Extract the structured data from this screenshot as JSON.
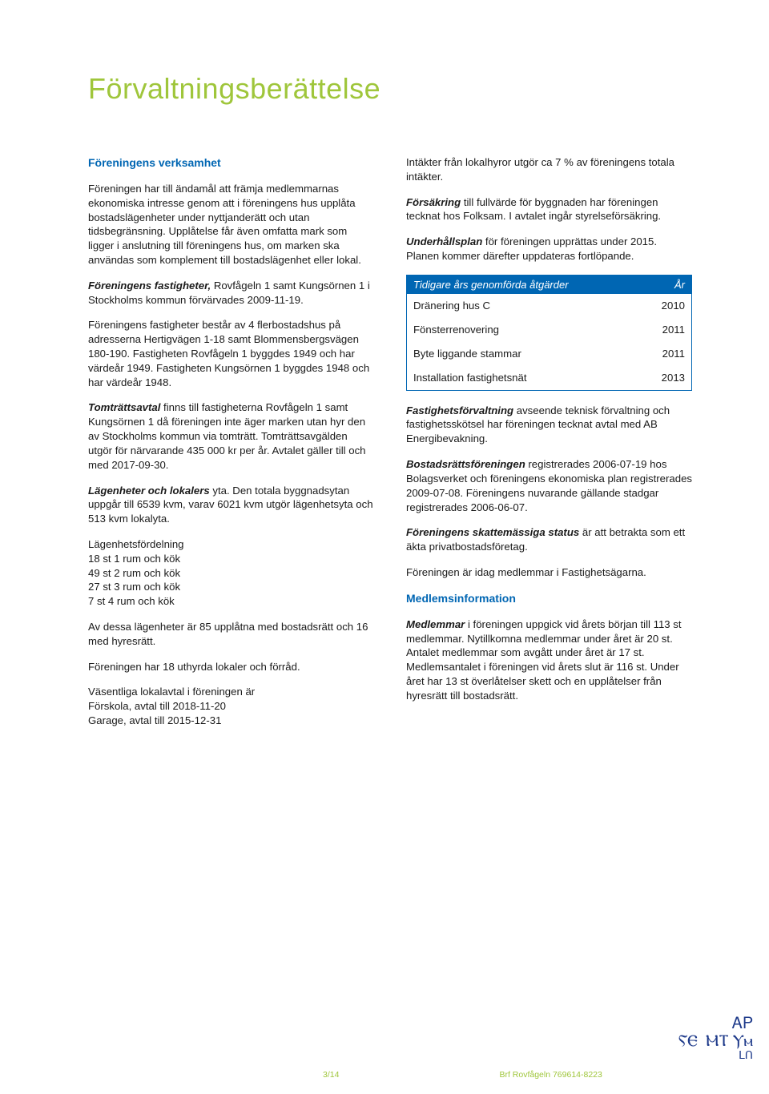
{
  "title": "Förvaltningsberättelse",
  "left": {
    "h1": "Föreningens verksamhet",
    "p1": "Föreningen har till ändamål att främja medlemmarnas ekonomiska intresse genom att i föreningens hus upplåta bostadslägenheter under nyttjanderätt och utan tidsbegränsning. Upplåtelse får även omfatta mark som ligger i anslutning till föreningens hus, om marken ska användas som komplement till bostadslägenhet eller lokal.",
    "p2_lead": "Föreningens fastigheter,",
    "p2_rest": " Rovfågeln 1 samt Kungsörnen 1 i Stockholms kommun förvärvades 2009-11-19.",
    "p3": "Föreningens fastigheter består av 4 flerbostadshus på adresserna Hertigvägen 1-18 samt Blommensbergsvägen 180-190. Fastigheten Rovfågeln 1 byggdes 1949 och har värdeår 1949. Fastigheten Kungsörnen 1 byggdes 1948 och har värdeår 1948.",
    "p4_lead": "Tomträttsavtal",
    "p4_rest": " finns till fastigheterna Rovfågeln 1 samt Kungsörnen 1 då föreningen inte äger marken utan hyr den av Stockholms kommun via tomträtt. Tomträttsavgälden utgör för närvarande 435 000 kr per år. Avtalet gäller till och med 2017-09-30.",
    "p5_lead": "Lägenheter och lokalers",
    "p5_rest": " yta. Den totala byggnadsytan uppgår till 6539 kvm, varav 6021 kvm utgör lägenhetsyta och 513 kvm lokalyta.",
    "p6a": "Lägenhetsfördelning",
    "p6b": "18 st 1 rum och kök",
    "p6c": "49 st 2 rum och kök",
    "p6d": "27 st 3 rum och kök",
    "p6e": "7 st 4 rum och kök",
    "p7": "Av dessa lägenheter är 85 upplåtna med bostadsrätt och 16 med hyresrätt.",
    "p8": "Föreningen har 18 uthyrda lokaler och förråd.",
    "p9a": "Väsentliga lokalavtal i föreningen är",
    "p9b": "Förskola, avtal till 2018-11-20",
    "p9c": "Garage, avtal till 2015-12-31"
  },
  "right": {
    "p1": "Intäkter från lokalhyror utgör ca 7 % av föreningens totala intäkter.",
    "p2_lead": "Försäkring",
    "p2_rest": " till fullvärde för byggnaden har föreningen tecknat hos Folksam. I avtalet ingår styrelseförsäkring.",
    "p3_lead": "Underhållsplan",
    "p3_rest": " för föreningen upprättas under 2015. Planen kommer därefter uppdateras fortlöpande.",
    "table": {
      "header_l": "Tidigare års genomförda åtgärder",
      "header_r": "År",
      "rows": [
        {
          "l": "Dränering hus C",
          "r": "2010"
        },
        {
          "l": "Fönsterrenovering",
          "r": "2011"
        },
        {
          "l": "Byte liggande stammar",
          "r": "2011"
        },
        {
          "l": "Installation fastighetsnät",
          "r": "2013"
        }
      ]
    },
    "p4_lead": "Fastighetsförvaltning",
    "p4_rest": " avseende teknisk förvaltning och fastighetsskötsel har föreningen tecknat avtal med AB Energibevakning.",
    "p5_lead": "Bostadsrättsföreningen",
    "p5_rest": " registrerades 2006-07-19 hos Bolagsverket och föreningens ekonomiska plan registrerades 2009-07-08. Föreningens nuvarande gällande stadgar registrerades 2006-06-07.",
    "p6_lead": "Föreningens skattemässiga status",
    "p6_rest": " är att betrakta som ett äkta privatbostadsföretag.",
    "p7": "Föreningen är idag medlemmar i Fastighetsägarna.",
    "h2": "Medlemsinformation",
    "p8_lead": "Medlemmar",
    "p8_rest": " i föreningen uppgick vid årets början till 113 st medlemmar. Nytillkomna medlemmar under året är 20 st. Antalet medlemmar som avgått under året är 17 st. Medlemsantalet i föreningen vid årets slut är 116 st. Under året har 13 st överlåtelser skett och en upplåtelser från hyresrätt till bostadsrätt."
  },
  "footer": {
    "page": "3/14",
    "brf": "Brf Rovfågeln 769614-8223"
  },
  "colors": {
    "green": "#9fc63b",
    "blue": "#0066b3",
    "text": "#1a1a1a",
    "sig": "#1e3a8a"
  }
}
